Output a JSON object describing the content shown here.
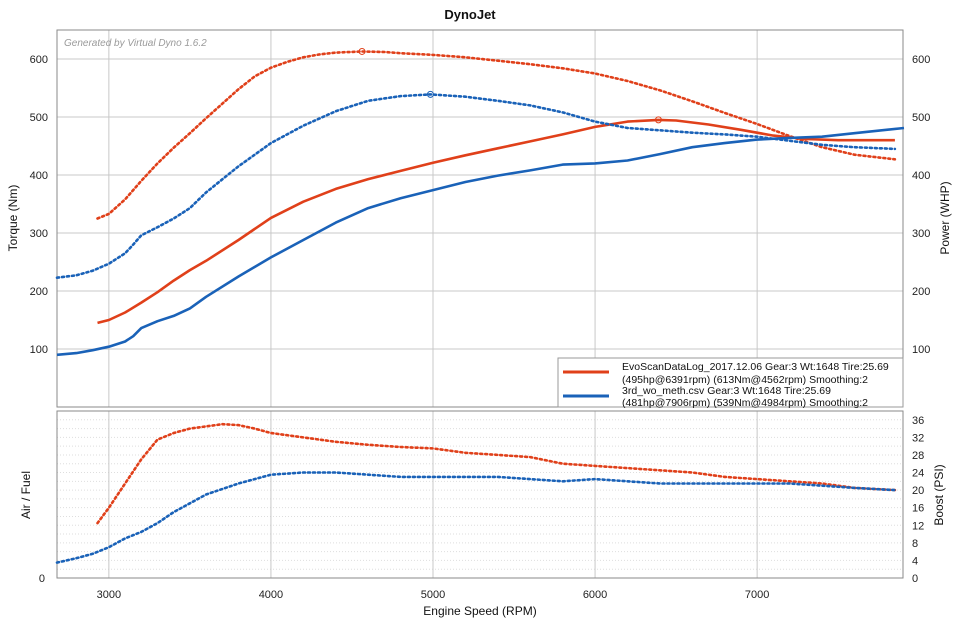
{
  "title": "DynoJet",
  "watermark": "Generated by Virtual Dyno 1.6.2",
  "x_axis_label": "Engine Speed (RPM)",
  "colors": {
    "evo": "#e0401a",
    "third": "#1a62b8",
    "grid": "#c8c8c8"
  },
  "legend": [
    {
      "line1": "EvoScanDataLog_2017.12.06  Gear:3  Wt:1648  Tire:25.69",
      "line2": "(495hp@6391rpm)  (613Nm@4562rpm)  Smoothing:2"
    },
    {
      "line1": "3rd_wo_meth.csv  Gear:3  Wt:1648  Tire:25.69",
      "line2": "(481hp@7906rpm)  (539Nm@4984rpm)  Smoothing:2"
    }
  ],
  "chart_data": [
    {
      "type": "line",
      "panel": "dyno",
      "xlabel": "Engine Speed (RPM)",
      "ylabel_left": "Torque (Nm)",
      "ylabel_right": "Power (WHP)",
      "xlim": [
        2680,
        7900
      ],
      "ylim_left": [
        0,
        650
      ],
      "ylim_right": [
        0,
        650
      ],
      "x_ticks": [
        3000,
        4000,
        5000,
        6000,
        7000
      ],
      "y_ticks_left": [
        100,
        200,
        300,
        400,
        500,
        600
      ],
      "y_ticks_right": [
        100,
        200,
        300,
        400,
        500,
        600
      ],
      "grid": true,
      "legend_position": "bottom-right",
      "series": [
        {
          "name": "EvoScanDataLog_2017.12.06",
          "metric": "Torque",
          "axis": "left",
          "color": "#e0401a",
          "style": "dotted",
          "x": [
            2930,
            3000,
            3100,
            3200,
            3300,
            3400,
            3500,
            3600,
            3700,
            3800,
            3900,
            4000,
            4100,
            4200,
            4300,
            4400,
            4562,
            4700,
            4800,
            5000,
            5200,
            5400,
            5600,
            5800,
            6000,
            6200,
            6400,
            6600,
            6800,
            7000,
            7200,
            7400,
            7600,
            7850
          ],
          "y": [
            325,
            333,
            358,
            390,
            420,
            447,
            472,
            498,
            523,
            548,
            570,
            585,
            595,
            603,
            608,
            611,
            613,
            612,
            610,
            607,
            603,
            597,
            591,
            584,
            575,
            562,
            546,
            527,
            507,
            488,
            467,
            448,
            435,
            427
          ]
        },
        {
          "name": "EvoScanDataLog_2017.12.06",
          "metric": "Power",
          "axis": "right",
          "color": "#e0401a",
          "style": "solid",
          "x": [
            2930,
            3000,
            3100,
            3200,
            3300,
            3400,
            3500,
            3600,
            3800,
            4000,
            4200,
            4400,
            4600,
            4800,
            5000,
            5200,
            5400,
            5600,
            5800,
            6000,
            6200,
            6391,
            6500,
            6700,
            6900,
            7100,
            7300,
            7500,
            7700,
            7850
          ],
          "y": [
            145,
            150,
            163,
            180,
            198,
            218,
            236,
            252,
            288,
            326,
            354,
            376,
            393,
            407,
            421,
            434,
            446,
            458,
            470,
            483,
            492,
            495,
            494,
            487,
            478,
            468,
            462,
            460,
            460,
            460
          ]
        },
        {
          "name": "3rd_wo_meth.csv",
          "metric": "Torque",
          "axis": "left",
          "color": "#1a62b8",
          "style": "dotted",
          "x": [
            2680,
            2800,
            2900,
            3000,
            3100,
            3150,
            3200,
            3300,
            3400,
            3500,
            3600,
            3800,
            4000,
            4200,
            4400,
            4600,
            4800,
            4984,
            5200,
            5400,
            5600,
            5800,
            6000,
            6200,
            6400,
            6600,
            6800,
            7000,
            7200,
            7400,
            7600,
            7850
          ],
          "y": [
            223,
            227,
            235,
            247,
            265,
            280,
            296,
            310,
            325,
            343,
            370,
            415,
            455,
            485,
            510,
            528,
            536,
            539,
            535,
            528,
            520,
            508,
            492,
            481,
            477,
            473,
            470,
            466,
            459,
            452,
            448,
            445
          ]
        },
        {
          "name": "3rd_wo_meth.csv",
          "metric": "Power",
          "axis": "right",
          "color": "#1a62b8",
          "style": "solid",
          "x": [
            2680,
            2800,
            2900,
            3000,
            3100,
            3150,
            3200,
            3300,
            3400,
            3500,
            3600,
            3800,
            4000,
            4200,
            4400,
            4600,
            4800,
            5000,
            5200,
            5400,
            5600,
            5800,
            6000,
            6200,
            6400,
            6600,
            6800,
            7000,
            7200,
            7400,
            7600,
            7906
          ],
          "y": [
            90,
            93,
            98,
            104,
            113,
            122,
            136,
            148,
            157,
            170,
            190,
            225,
            258,
            288,
            318,
            343,
            360,
            374,
            388,
            399,
            408,
            418,
            420,
            425,
            436,
            448,
            455,
            461,
            464,
            466,
            472,
            481
          ]
        }
      ]
    },
    {
      "type": "line",
      "panel": "boost",
      "xlabel": "Engine Speed (RPM)",
      "ylabel_left": "Air / Fuel",
      "ylabel_right": "Boost (PSI)",
      "xlim": [
        2680,
        7900
      ],
      "ylim_right": [
        0,
        38
      ],
      "y_ticks_left": [
        0
      ],
      "y_ticks_right": [
        0,
        4,
        8,
        12,
        16,
        20,
        24,
        28,
        32,
        36
      ],
      "grid": true,
      "series": [
        {
          "name": "EvoScanDataLog_2017.12.06",
          "metric": "Boost",
          "axis": "right",
          "color": "#e0401a",
          "style": "dotted",
          "x": [
            2930,
            3000,
            3100,
            3200,
            3300,
            3400,
            3500,
            3600,
            3700,
            3800,
            3900,
            4000,
            4200,
            4400,
            4600,
            4800,
            5000,
            5200,
            5400,
            5600,
            5800,
            6000,
            6200,
            6400,
            6600,
            6800,
            7000,
            7200,
            7400,
            7600,
            7850
          ],
          "y": [
            12.5,
            16,
            21.5,
            27,
            31.5,
            33,
            34,
            34.5,
            35,
            34.8,
            34,
            33,
            32,
            31,
            30.3,
            29.8,
            29.5,
            28.5,
            28,
            27.5,
            26,
            25.5,
            25,
            24.5,
            24,
            23,
            22.5,
            22,
            21.5,
            20.5,
            20
          ]
        },
        {
          "name": "3rd_wo_meth.csv",
          "metric": "Boost",
          "axis": "right",
          "color": "#1a62b8",
          "style": "dotted",
          "x": [
            2680,
            2800,
            2900,
            3000,
            3100,
            3200,
            3300,
            3400,
            3500,
            3600,
            3800,
            4000,
            4200,
            4400,
            4600,
            4800,
            5000,
            5200,
            5400,
            5600,
            5800,
            6000,
            6200,
            6400,
            6600,
            6800,
            7000,
            7200,
            7400,
            7600,
            7850
          ],
          "y": [
            3.5,
            4.5,
            5.5,
            7,
            9,
            10.5,
            12.5,
            15,
            17,
            19,
            21.5,
            23.5,
            24,
            24,
            23.5,
            23,
            23,
            23,
            23,
            22.5,
            22,
            22.5,
            22,
            21.5,
            21.5,
            21.5,
            21.5,
            21.5,
            21,
            20.5,
            20
          ]
        }
      ]
    }
  ]
}
